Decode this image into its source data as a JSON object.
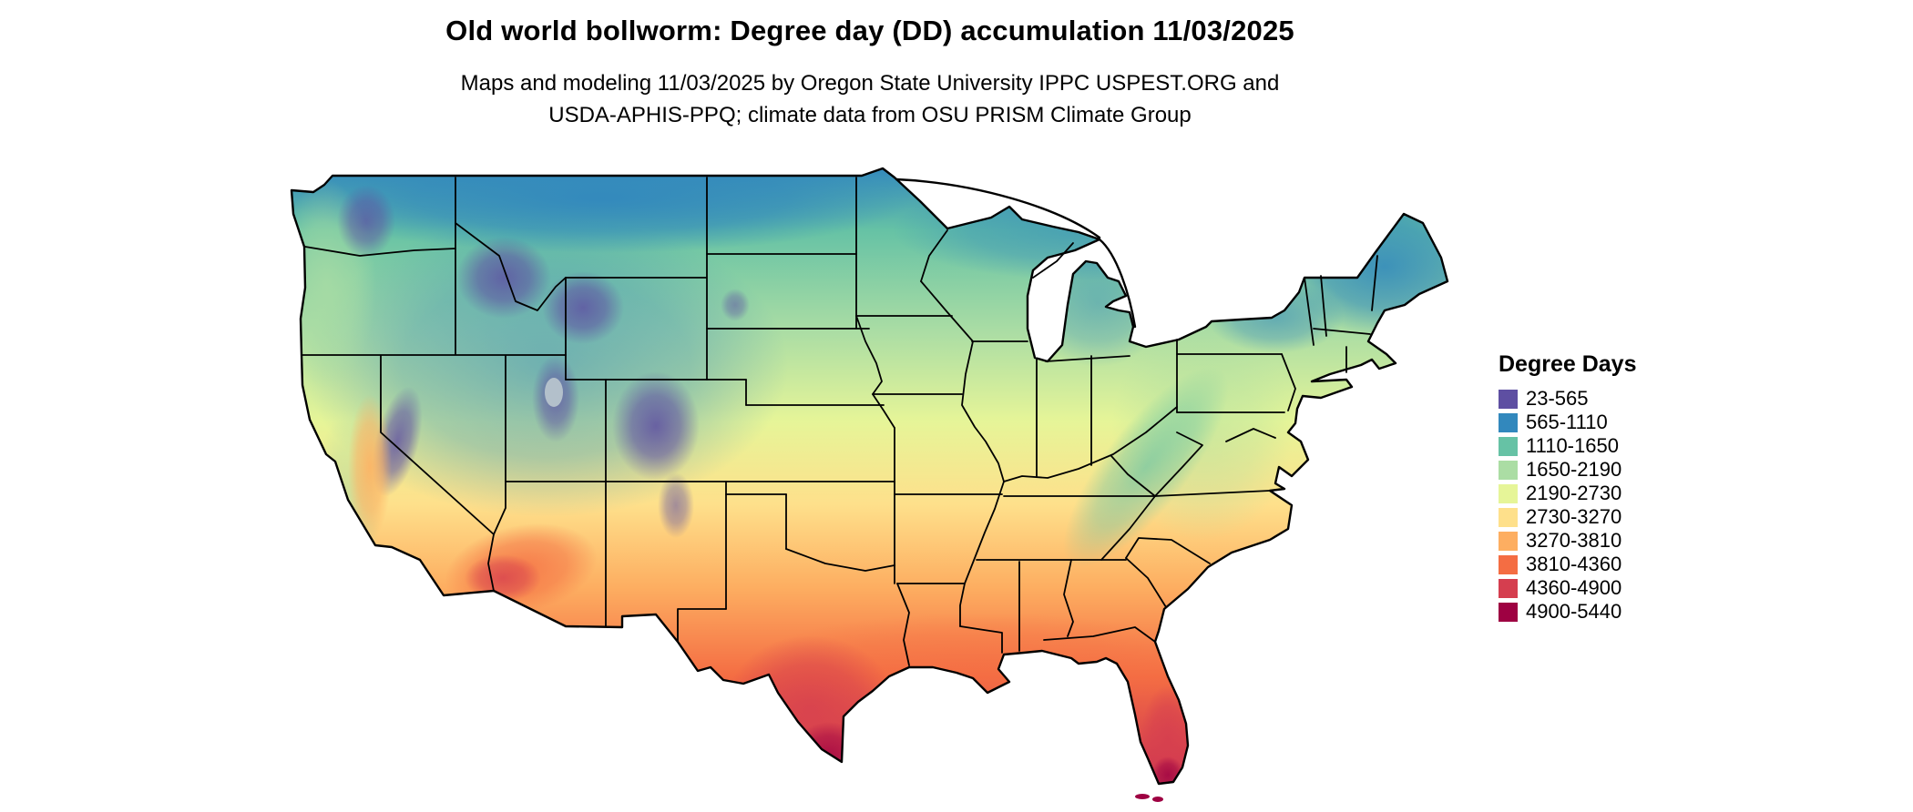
{
  "title": "Old world bollworm: Degree day (DD) accumulation 11/03/2025",
  "subtitle_line1": "Maps and modeling 11/03/2025 by Oregon State University IPPC USPEST.ORG and",
  "subtitle_line2": "USDA-APHIS-PPQ; climate data from OSU PRISM Climate Group",
  "map": {
    "name": "us-degree-days-choropleth",
    "area": "Contiguous United States"
  },
  "legend": {
    "title": "Degree Days",
    "entries": [
      {
        "label": "23-565",
        "color": "#5e4fa2"
      },
      {
        "label": "565-1110",
        "color": "#3288bd"
      },
      {
        "label": "1110-1650",
        "color": "#66c2a5"
      },
      {
        "label": "1650-2190",
        "color": "#abdda4"
      },
      {
        "label": "2190-2730",
        "color": "#e6f598"
      },
      {
        "label": "2730-3270",
        "color": "#fee08b"
      },
      {
        "label": "3270-3810",
        "color": "#fdae61"
      },
      {
        "label": "3810-4360",
        "color": "#f46d43"
      },
      {
        "label": "4360-4900",
        "color": "#d53e4f"
      },
      {
        "label": "4900-5440",
        "color": "#9e0142"
      }
    ]
  }
}
